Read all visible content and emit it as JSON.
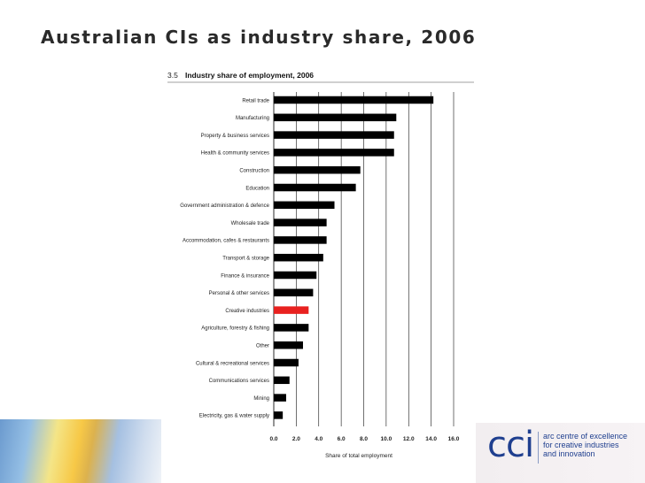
{
  "slide": {
    "title": "Australian CIs as industry share, 2006"
  },
  "logo": {
    "mark": "cci",
    "lines": [
      "arc centre of excellence",
      "for creative industries",
      "and innovation"
    ]
  },
  "colors": {
    "bar": "#000000",
    "highlight": "#e8211f",
    "grid": "#111111"
  },
  "chart_data": {
    "type": "bar",
    "orientation": "horizontal",
    "figure_number": "3.5",
    "title": "Industry share of employment, 2006",
    "xlabel": "Share of total employment",
    "ylabel": "",
    "xlim": [
      0,
      16
    ],
    "xticks": [
      "0.0",
      "2.0",
      "4.0",
      "6.0",
      "8.0",
      "10.0",
      "12.0",
      "14.0",
      "16.0"
    ],
    "grid": "vertical",
    "highlight_category": "Creative industries",
    "categories": [
      "Retail trade",
      "Manufacturing",
      "Property & business services",
      "Health & community services",
      "Construction",
      "Education",
      "Government administration & defence",
      "Wholesale trade",
      "Accommodation, cafes & restaurants",
      "Transport & storage",
      "Finance & insurance",
      "Personal & other services",
      "Creative industries",
      "Agriculture, forestry & fishing",
      "Other",
      "Cultural & recreational services",
      "Communications services",
      "Mining",
      "Electricity, gas & water supply"
    ],
    "values": [
      14.2,
      10.9,
      10.7,
      10.7,
      7.7,
      7.3,
      5.4,
      4.7,
      4.7,
      4.4,
      3.8,
      3.5,
      3.1,
      3.1,
      2.6,
      2.2,
      1.4,
      1.1,
      0.8
    ]
  }
}
